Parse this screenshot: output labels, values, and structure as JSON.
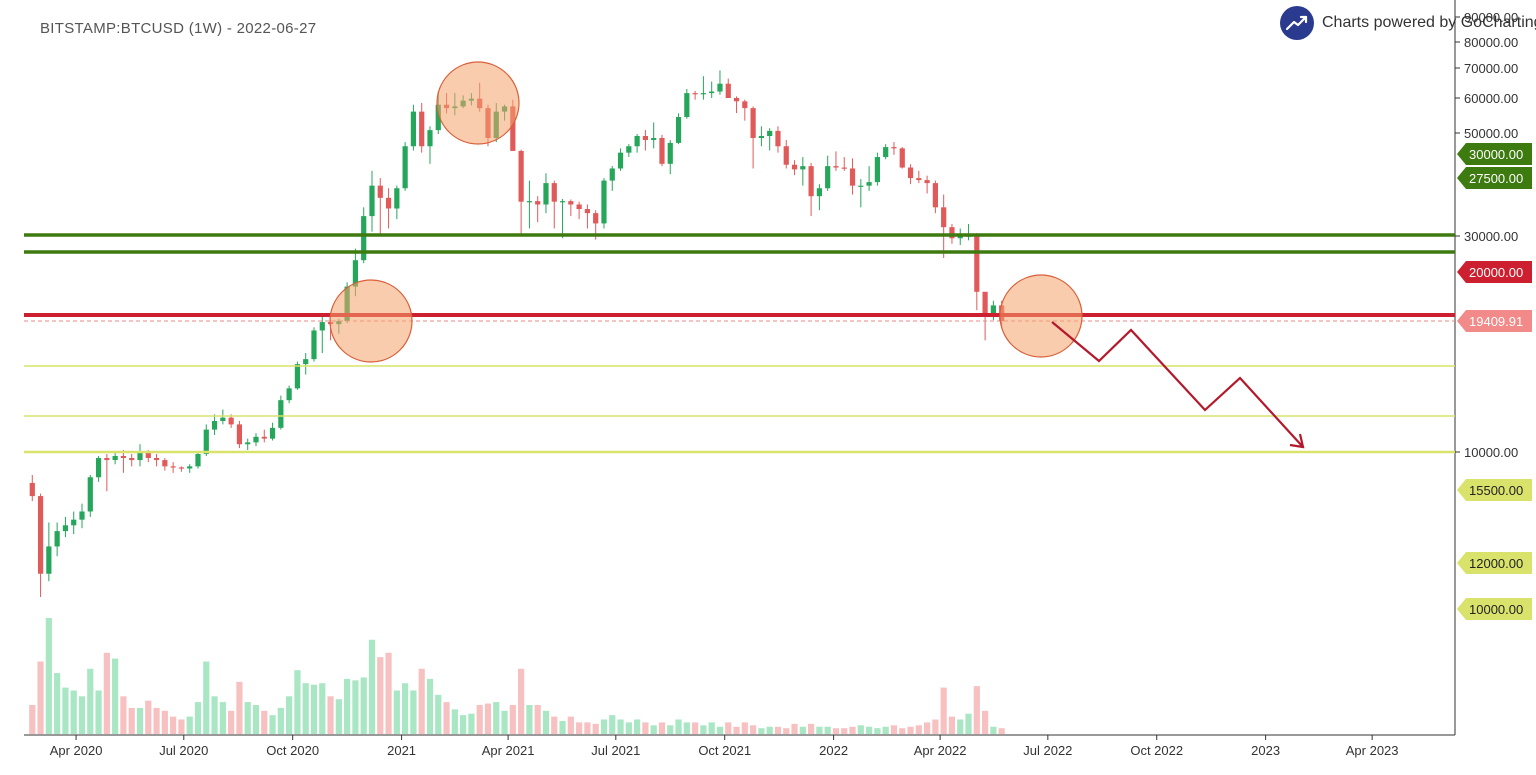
{
  "header": {
    "title": "BITSTAMP:BTCUSD (1W) - 2022-06-27",
    "credit": "Charts powered by GoCharting"
  },
  "colors": {
    "up": "#26a65b",
    "down": "#e05a5a",
    "up_volume": "#a8e6c4",
    "down_volume": "#f7c1c1",
    "support_green": "#3d7a0f",
    "support_red": "#cc1f2f",
    "support_yellow": "#d9e36b",
    "projection": "#b3182b",
    "highlight_circle": "#f6a26b"
  },
  "chart_data": {
    "type": "candlestick",
    "symbol": "BITSTAMP:BTCUSD",
    "interval": "1W",
    "y_scale": "log",
    "x_axis": {
      "tick_labels": [
        "Apr 2020",
        "Jul 2020",
        "Oct 2020",
        "2021",
        "Apr 2021",
        "Jul 2021",
        "Oct 2021",
        "2022",
        "Apr 2022",
        "Jul 2022",
        "Oct 2022",
        "2023",
        "Apr 2023"
      ],
      "tick_dates": [
        "2020-04-01",
        "2020-07-01",
        "2020-10-01",
        "2021-01-01",
        "2021-04-01",
        "2021-07-01",
        "2021-10-01",
        "2022-01-01",
        "2022-04-01",
        "2022-07-01",
        "2022-10-01",
        "2023-01-01",
        "2023-04-01"
      ],
      "range": [
        "2020-02-17",
        "2023-06-10"
      ]
    },
    "y_axis": {
      "tick_labels": [
        "90000.00",
        "80000.00",
        "70000.00",
        "60000.00",
        "50000.00",
        "30000.00",
        "10000.00"
      ],
      "tick_values": [
        90000,
        80000,
        70000,
        60000,
        50000,
        30000,
        10000
      ],
      "note": "Tick labels and labeled horizontal levels are drawn at the positions shown in the original chart."
    },
    "price_labels": [
      {
        "label": "30000.00",
        "style": "green"
      },
      {
        "label": "27500.00",
        "style": "green"
      },
      {
        "label": "20000.00",
        "style": "red"
      },
      {
        "label": "19409.91",
        "style": "current"
      },
      {
        "label": "15500.00",
        "style": "yellow"
      },
      {
        "label": "12000.00",
        "style": "yellow"
      },
      {
        "label": "10000.00",
        "style": "yellow"
      }
    ],
    "horizontal_lines": [
      {
        "label": "30000.00",
        "color": "green"
      },
      {
        "label": "27500.00",
        "color": "green"
      },
      {
        "label": "20000.00",
        "color": "red"
      },
      {
        "label": "19409.91",
        "color": "current",
        "dashed": true
      },
      {
        "label": "15500.00",
        "color": "yellow"
      },
      {
        "label": "12000.00",
        "color": "yellow"
      },
      {
        "label": "10000.00",
        "color": "yellow"
      }
    ],
    "candles_ohlcv": [
      [
        8550,
        8900,
        7800,
        8000,
        2.0
      ],
      [
        8000,
        8100,
        4800,
        5400,
        5.0
      ],
      [
        5400,
        7000,
        5200,
        6200,
        8.0
      ],
      [
        6200,
        7000,
        5900,
        6700,
        4.2
      ],
      [
        6700,
        7200,
        6500,
        6900,
        3.2
      ],
      [
        6900,
        7400,
        6600,
        7100,
        3.0
      ],
      [
        7100,
        7700,
        6800,
        7400,
        2.6
      ],
      [
        7400,
        8900,
        7200,
        8800,
        4.5
      ],
      [
        8800,
        9800,
        8600,
        9700,
        3.0
      ],
      [
        9700,
        9900,
        8200,
        9600,
        5.6
      ],
      [
        9600,
        10000,
        9400,
        9800,
        5.2
      ],
      [
        9800,
        10100,
        9000,
        9700,
        2.6
      ],
      [
        9700,
        9900,
        9300,
        9600,
        1.8
      ],
      [
        9600,
        10400,
        9300,
        10000,
        1.8
      ],
      [
        10000,
        10100,
        9500,
        9700,
        2.3
      ],
      [
        9700,
        9900,
        9300,
        9600,
        1.8
      ],
      [
        9600,
        9700,
        9100,
        9300,
        1.6
      ],
      [
        9300,
        9500,
        9000,
        9250,
        1.2
      ],
      [
        9250,
        9300,
        9050,
        9200,
        1.0
      ],
      [
        9200,
        9400,
        9000,
        9300,
        1.2
      ],
      [
        9300,
        10000,
        9200,
        9900,
        2.2
      ],
      [
        9900,
        11500,
        9800,
        11200,
        5.0
      ],
      [
        11200,
        12100,
        10900,
        11700,
        2.6
      ],
      [
        11700,
        12400,
        11500,
        11900,
        2.2
      ],
      [
        11900,
        12100,
        11300,
        11500,
        1.6
      ],
      [
        11500,
        11700,
        10200,
        10400,
        3.6
      ],
      [
        10400,
        10700,
        10100,
        10500,
        2.2
      ],
      [
        10500,
        11000,
        10300,
        10800,
        2.0
      ],
      [
        10800,
        11200,
        10500,
        10700,
        1.6
      ],
      [
        10700,
        11600,
        10600,
        11300,
        1.3
      ],
      [
        11300,
        13300,
        11200,
        13000,
        1.8
      ],
      [
        13000,
        14000,
        12800,
        13800,
        2.6
      ],
      [
        13800,
        15800,
        13700,
        15600,
        4.4
      ],
      [
        15600,
        16500,
        14800,
        16000,
        3.5
      ],
      [
        16000,
        18800,
        15800,
        18500,
        3.4
      ],
      [
        18500,
        19900,
        16500,
        19300,
        3.5
      ],
      [
        19300,
        19500,
        17600,
        19100,
        2.6
      ],
      [
        19100,
        19600,
        18200,
        19400,
        2.4
      ],
      [
        19400,
        23600,
        19200,
        23100,
        3.8
      ],
      [
        23100,
        28000,
        22000,
        26400,
        3.7
      ],
      [
        26400,
        34500,
        26000,
        33000,
        3.9
      ],
      [
        33000,
        41500,
        30500,
        38500,
        6.5
      ],
      [
        38500,
        40000,
        30000,
        36200,
        5.3
      ],
      [
        36200,
        38000,
        31000,
        34300,
        5.6
      ],
      [
        34300,
        38500,
        32500,
        38000,
        3.0
      ],
      [
        38000,
        48000,
        37500,
        47000,
        3.5
      ],
      [
        47000,
        58000,
        46000,
        56000,
        3.0
      ],
      [
        56000,
        58500,
        45500,
        47000,
        4.5
      ],
      [
        47000,
        52000,
        43000,
        51000,
        3.8
      ],
      [
        51000,
        62000,
        50000,
        58000,
        2.7
      ],
      [
        58000,
        61500,
        55500,
        57000,
        2.2
      ],
      [
        57000,
        61500,
        55000,
        57500,
        1.7
      ],
      [
        57500,
        60800,
        57000,
        59200,
        1.3
      ],
      [
        59200,
        61500,
        57800,
        59800,
        1.4
      ],
      [
        59800,
        64800,
        56000,
        57000,
        2.0
      ],
      [
        57000,
        58000,
        47000,
        49000,
        2.1
      ],
      [
        49000,
        58500,
        48000,
        56000,
        2.2
      ],
      [
        56000,
        58000,
        53500,
        57500,
        1.6
      ],
      [
        57500,
        59500,
        46000,
        45900,
        2.0
      ],
      [
        45900,
        46200,
        30000,
        35500,
        4.5
      ],
      [
        35500,
        39500,
        31000,
        35600,
        2.0
      ],
      [
        35600,
        36500,
        32000,
        35000,
        2.0
      ],
      [
        35000,
        41000,
        33500,
        39000,
        1.6
      ],
      [
        39000,
        39500,
        31000,
        35500,
        1.2
      ],
      [
        35500,
        36000,
        29500,
        35600,
        0.9
      ],
      [
        35600,
        35900,
        33000,
        35000,
        1.2
      ],
      [
        35000,
        35500,
        32500,
        34200,
        0.8
      ],
      [
        34200,
        35000,
        31000,
        33500,
        0.8
      ],
      [
        33500,
        34000,
        29300,
        31800,
        0.7
      ],
      [
        31800,
        40000,
        31000,
        39500,
        1.0
      ],
      [
        39500,
        42500,
        37500,
        42000,
        1.3
      ],
      [
        42000,
        46500,
        41500,
        45500,
        1.0
      ],
      [
        45500,
        47500,
        44500,
        47000,
        0.8
      ],
      [
        47000,
        50000,
        45500,
        49500,
        1.0
      ],
      [
        49500,
        51000,
        46000,
        48500,
        0.8
      ],
      [
        48500,
        53000,
        46500,
        49000,
        0.6
      ],
      [
        49000,
        49800,
        42500,
        43000,
        0.8
      ],
      [
        43000,
        48500,
        40800,
        47800,
        0.6
      ],
      [
        47800,
        55500,
        47500,
        54500,
        1.0
      ],
      [
        54500,
        62800,
        54000,
        61500,
        0.8
      ],
      [
        61500,
        62200,
        59500,
        61200,
        0.8
      ],
      [
        61200,
        67000,
        59500,
        61500,
        0.6
      ],
      [
        61500,
        65200,
        60000,
        62000,
        0.8
      ],
      [
        62000,
        69000,
        61000,
        64500,
        0.5
      ],
      [
        64500,
        66200,
        60000,
        60000,
        0.8
      ],
      [
        60000,
        60500,
        55600,
        59000,
        0.5
      ],
      [
        59000,
        59500,
        53500,
        57000,
        0.8
      ],
      [
        57000,
        57500,
        42000,
        49000,
        0.6
      ],
      [
        49000,
        52000,
        47000,
        49500,
        0.4
      ],
      [
        49500,
        51500,
        46000,
        50800,
        0.5
      ],
      [
        50800,
        52000,
        45500,
        47000,
        0.5
      ],
      [
        47000,
        48500,
        42000,
        42800,
        0.4
      ],
      [
        42800,
        43800,
        40600,
        41800,
        0.7
      ],
      [
        41800,
        44500,
        38500,
        42500,
        0.5
      ],
      [
        42500,
        43200,
        33000,
        36500,
        0.7
      ],
      [
        36500,
        38800,
        34000,
        38000,
        0.5
      ],
      [
        38000,
        44800,
        37500,
        42500,
        0.5
      ],
      [
        42500,
        45800,
        41500,
        42200,
        0.4
      ],
      [
        42200,
        44500,
        41500,
        42000,
        0.4
      ],
      [
        42000,
        44200,
        36800,
        38500,
        0.5
      ],
      [
        38500,
        39800,
        34500,
        38500,
        0.6
      ],
      [
        38500,
        42500,
        37500,
        39200,
        0.5
      ],
      [
        39200,
        45500,
        38500,
        44500,
        0.4
      ],
      [
        44500,
        47500,
        44000,
        46800,
        0.5
      ],
      [
        46800,
        48000,
        45000,
        46500,
        0.6
      ],
      [
        46500,
        46800,
        42000,
        42200,
        0.4
      ],
      [
        42200,
        42900,
        38800,
        40000,
        0.5
      ],
      [
        40000,
        41500,
        39000,
        39600,
        0.6
      ],
      [
        39600,
        40500,
        37000,
        39000,
        0.8
      ],
      [
        39000,
        39500,
        33500,
        34500,
        1.0
      ],
      [
        34500,
        36800,
        26700,
        31200,
        3.2
      ],
      [
        31200,
        31700,
        28700,
        29500,
        1.2
      ],
      [
        29500,
        31000,
        28500,
        29800,
        1.0
      ],
      [
        29800,
        31700,
        29200,
        29900,
        1.4
      ],
      [
        29900,
        30300,
        20500,
        22500,
        3.3
      ],
      [
        22500,
        22000,
        17600,
        20000,
        1.6
      ],
      [
        20000,
        21500,
        19500,
        21000,
        0.5
      ],
      [
        21000,
        21500,
        18700,
        19409.91,
        0.4
      ]
    ],
    "projection_path_note": "Hand-drawn arrow from Jul 2022 downward in a zigzag toward the 10000.00 level, ending after Jan 2023."
  }
}
